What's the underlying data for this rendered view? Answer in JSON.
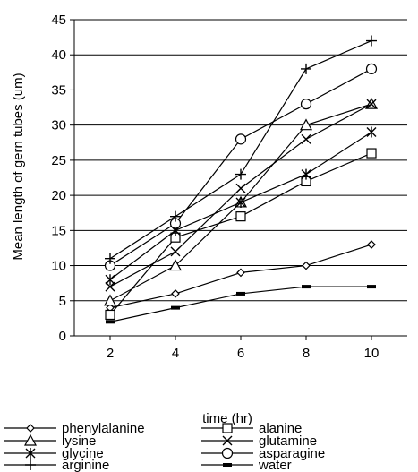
{
  "chart_data": {
    "type": "line",
    "title": "",
    "xlabel": "time (hr)",
    "ylabel": "Mean length of gern tubes (um)",
    "x": [
      2,
      4,
      6,
      8,
      10
    ],
    "xticks": [
      "2",
      "4",
      "6",
      "8",
      "10"
    ],
    "ylim": [
      0,
      45
    ],
    "yticks": [
      "0",
      "5",
      "10",
      "15",
      "20",
      "25",
      "30",
      "35",
      "40",
      "45"
    ],
    "grid": "horizontal",
    "legend_position": "bottom",
    "series": [
      {
        "name": "phenylalanine",
        "marker": "diamond",
        "values": [
          4,
          6,
          9,
          10,
          13
        ]
      },
      {
        "name": "alanine",
        "marker": "square",
        "values": [
          3,
          14,
          17,
          22,
          26
        ]
      },
      {
        "name": "lysine",
        "marker": "triangle",
        "values": [
          5,
          10,
          19,
          30,
          33
        ]
      },
      {
        "name": "glutamine",
        "marker": "x",
        "values": [
          7,
          12,
          21,
          28,
          33
        ]
      },
      {
        "name": "glycine",
        "marker": "asterisk",
        "values": [
          8,
          15,
          19,
          23,
          29
        ]
      },
      {
        "name": "asparagine",
        "marker": "circle",
        "values": [
          10,
          16,
          28,
          33,
          38
        ]
      },
      {
        "name": "arginine",
        "marker": "plus",
        "values": [
          11,
          17,
          23,
          38,
          42
        ]
      },
      {
        "name": "water",
        "marker": "bar",
        "values": [
          2,
          4,
          6,
          7,
          7
        ]
      }
    ]
  }
}
